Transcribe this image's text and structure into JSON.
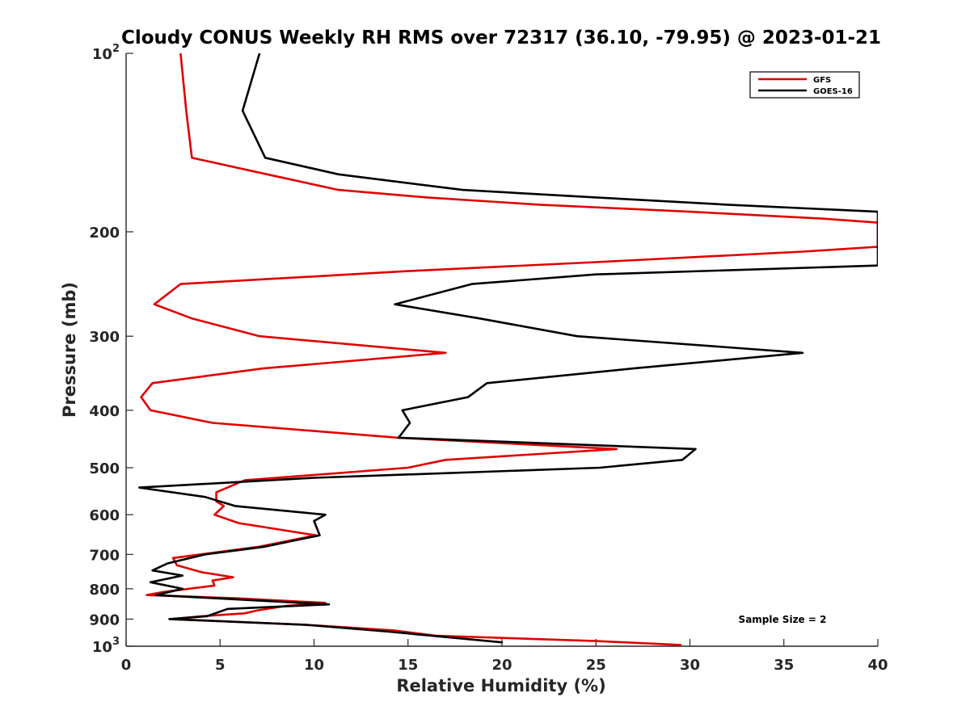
{
  "chart_data": {
    "type": "line",
    "title": "Cloudy CONUS Weekly RH RMS over 72317 (36.10, -79.95) @ 2023-01-21",
    "xlabel": "Relative Humidity (%)",
    "ylabel": "Pressure (mb)",
    "xlim": [
      0,
      40
    ],
    "ylim": [
      100,
      1000
    ],
    "y_scale": "log",
    "y_reversed": true,
    "x_ticks": [
      "0",
      "5",
      "10",
      "15",
      "20",
      "25",
      "30",
      "35",
      "40"
    ],
    "y_ticks": [
      {
        "value": 100,
        "label": "10",
        "exp": "2"
      },
      {
        "value": 200,
        "label": "200"
      },
      {
        "value": 300,
        "label": "300"
      },
      {
        "value": 400,
        "label": "400"
      },
      {
        "value": 500,
        "label": "500"
      },
      {
        "value": 600,
        "label": "600"
      },
      {
        "value": 700,
        "label": "700"
      },
      {
        "value": 800,
        "label": "800"
      },
      {
        "value": 900,
        "label": "900"
      },
      {
        "value": 1000,
        "label": "10",
        "exp": "3"
      }
    ],
    "legend_position": "top-right",
    "annotation": "Sample Size = 2",
    "series": [
      {
        "name": "GFS",
        "color": "#e00000",
        "points": [
          [
            2.9,
            100
          ],
          [
            3.2,
            125
          ],
          [
            3.5,
            150
          ],
          [
            7.5,
            160
          ],
          [
            11.3,
            170
          ],
          [
            16,
            175
          ],
          [
            22,
            180
          ],
          [
            30,
            185
          ],
          [
            37,
            190
          ],
          [
            40,
            193
          ],
          [
            40,
            212
          ],
          [
            36,
            216
          ],
          [
            25,
            225
          ],
          [
            15,
            233
          ],
          [
            2.9,
            245
          ],
          [
            1.5,
            265
          ],
          [
            3.5,
            280
          ],
          [
            7.1,
            300
          ],
          [
            17,
            320
          ],
          [
            7.3,
            340
          ],
          [
            1.4,
            360
          ],
          [
            0.8,
            380
          ],
          [
            1.3,
            400
          ],
          [
            4.6,
            420
          ],
          [
            14.5,
            445
          ],
          [
            26.1,
            465
          ],
          [
            17,
            485
          ],
          [
            15,
            500
          ],
          [
            6.3,
            525
          ],
          [
            4.8,
            550
          ],
          [
            4.8,
            570
          ],
          [
            5.2,
            580
          ],
          [
            4.7,
            600
          ],
          [
            6.0,
            620
          ],
          [
            10.1,
            650
          ],
          [
            7.0,
            680
          ],
          [
            2.5,
            710
          ],
          [
            2.7,
            730
          ],
          [
            4.0,
            750
          ],
          [
            5.7,
            765
          ],
          [
            4.6,
            775
          ],
          [
            4.7,
            790
          ],
          [
            2.0,
            810
          ],
          [
            1.1,
            820
          ],
          [
            5.8,
            830
          ],
          [
            10.6,
            845
          ],
          [
            8.5,
            855
          ],
          [
            7.0,
            870
          ],
          [
            6.3,
            880
          ],
          [
            4.0,
            890
          ],
          [
            2.4,
            900
          ],
          [
            9.5,
            920
          ],
          [
            14.2,
            940
          ],
          [
            16.5,
            960
          ],
          [
            25.0,
            980
          ],
          [
            29.5,
            995
          ]
        ]
      },
      {
        "name": "GOES-16",
        "color": "#000000",
        "points": [
          [
            7.1,
            100
          ],
          [
            6.2,
            125
          ],
          [
            7.4,
            150
          ],
          [
            11.3,
            160
          ],
          [
            17.9,
            170
          ],
          [
            25,
            175
          ],
          [
            32,
            180
          ],
          [
            40,
            185
          ],
          [
            40,
            228
          ],
          [
            25,
            236
          ],
          [
            18.4,
            245
          ],
          [
            14.3,
            265
          ],
          [
            18.8,
            280
          ],
          [
            24,
            300
          ],
          [
            36,
            320
          ],
          [
            27,
            340
          ],
          [
            19.2,
            360
          ],
          [
            18.2,
            380
          ],
          [
            14.7,
            400
          ],
          [
            15.1,
            420
          ],
          [
            14.5,
            445
          ],
          [
            30.3,
            465
          ],
          [
            29.6,
            485
          ],
          [
            25.2,
            500
          ],
          [
            10,
            520
          ],
          [
            0.7,
            540
          ],
          [
            4.2,
            560
          ],
          [
            5.8,
            580
          ],
          [
            10.6,
            600
          ],
          [
            10.0,
            615
          ],
          [
            10.3,
            650
          ],
          [
            7.3,
            680
          ],
          [
            4.2,
            700
          ],
          [
            2.2,
            725
          ],
          [
            1.4,
            745
          ],
          [
            3.0,
            760
          ],
          [
            1.3,
            780
          ],
          [
            3.0,
            800
          ],
          [
            1.6,
            820
          ],
          [
            10.8,
            850
          ],
          [
            5.4,
            865
          ],
          [
            4.3,
            890
          ],
          [
            2.3,
            900
          ],
          [
            9.5,
            920
          ],
          [
            14.0,
            945
          ],
          [
            20.0,
            985
          ]
        ]
      }
    ]
  }
}
